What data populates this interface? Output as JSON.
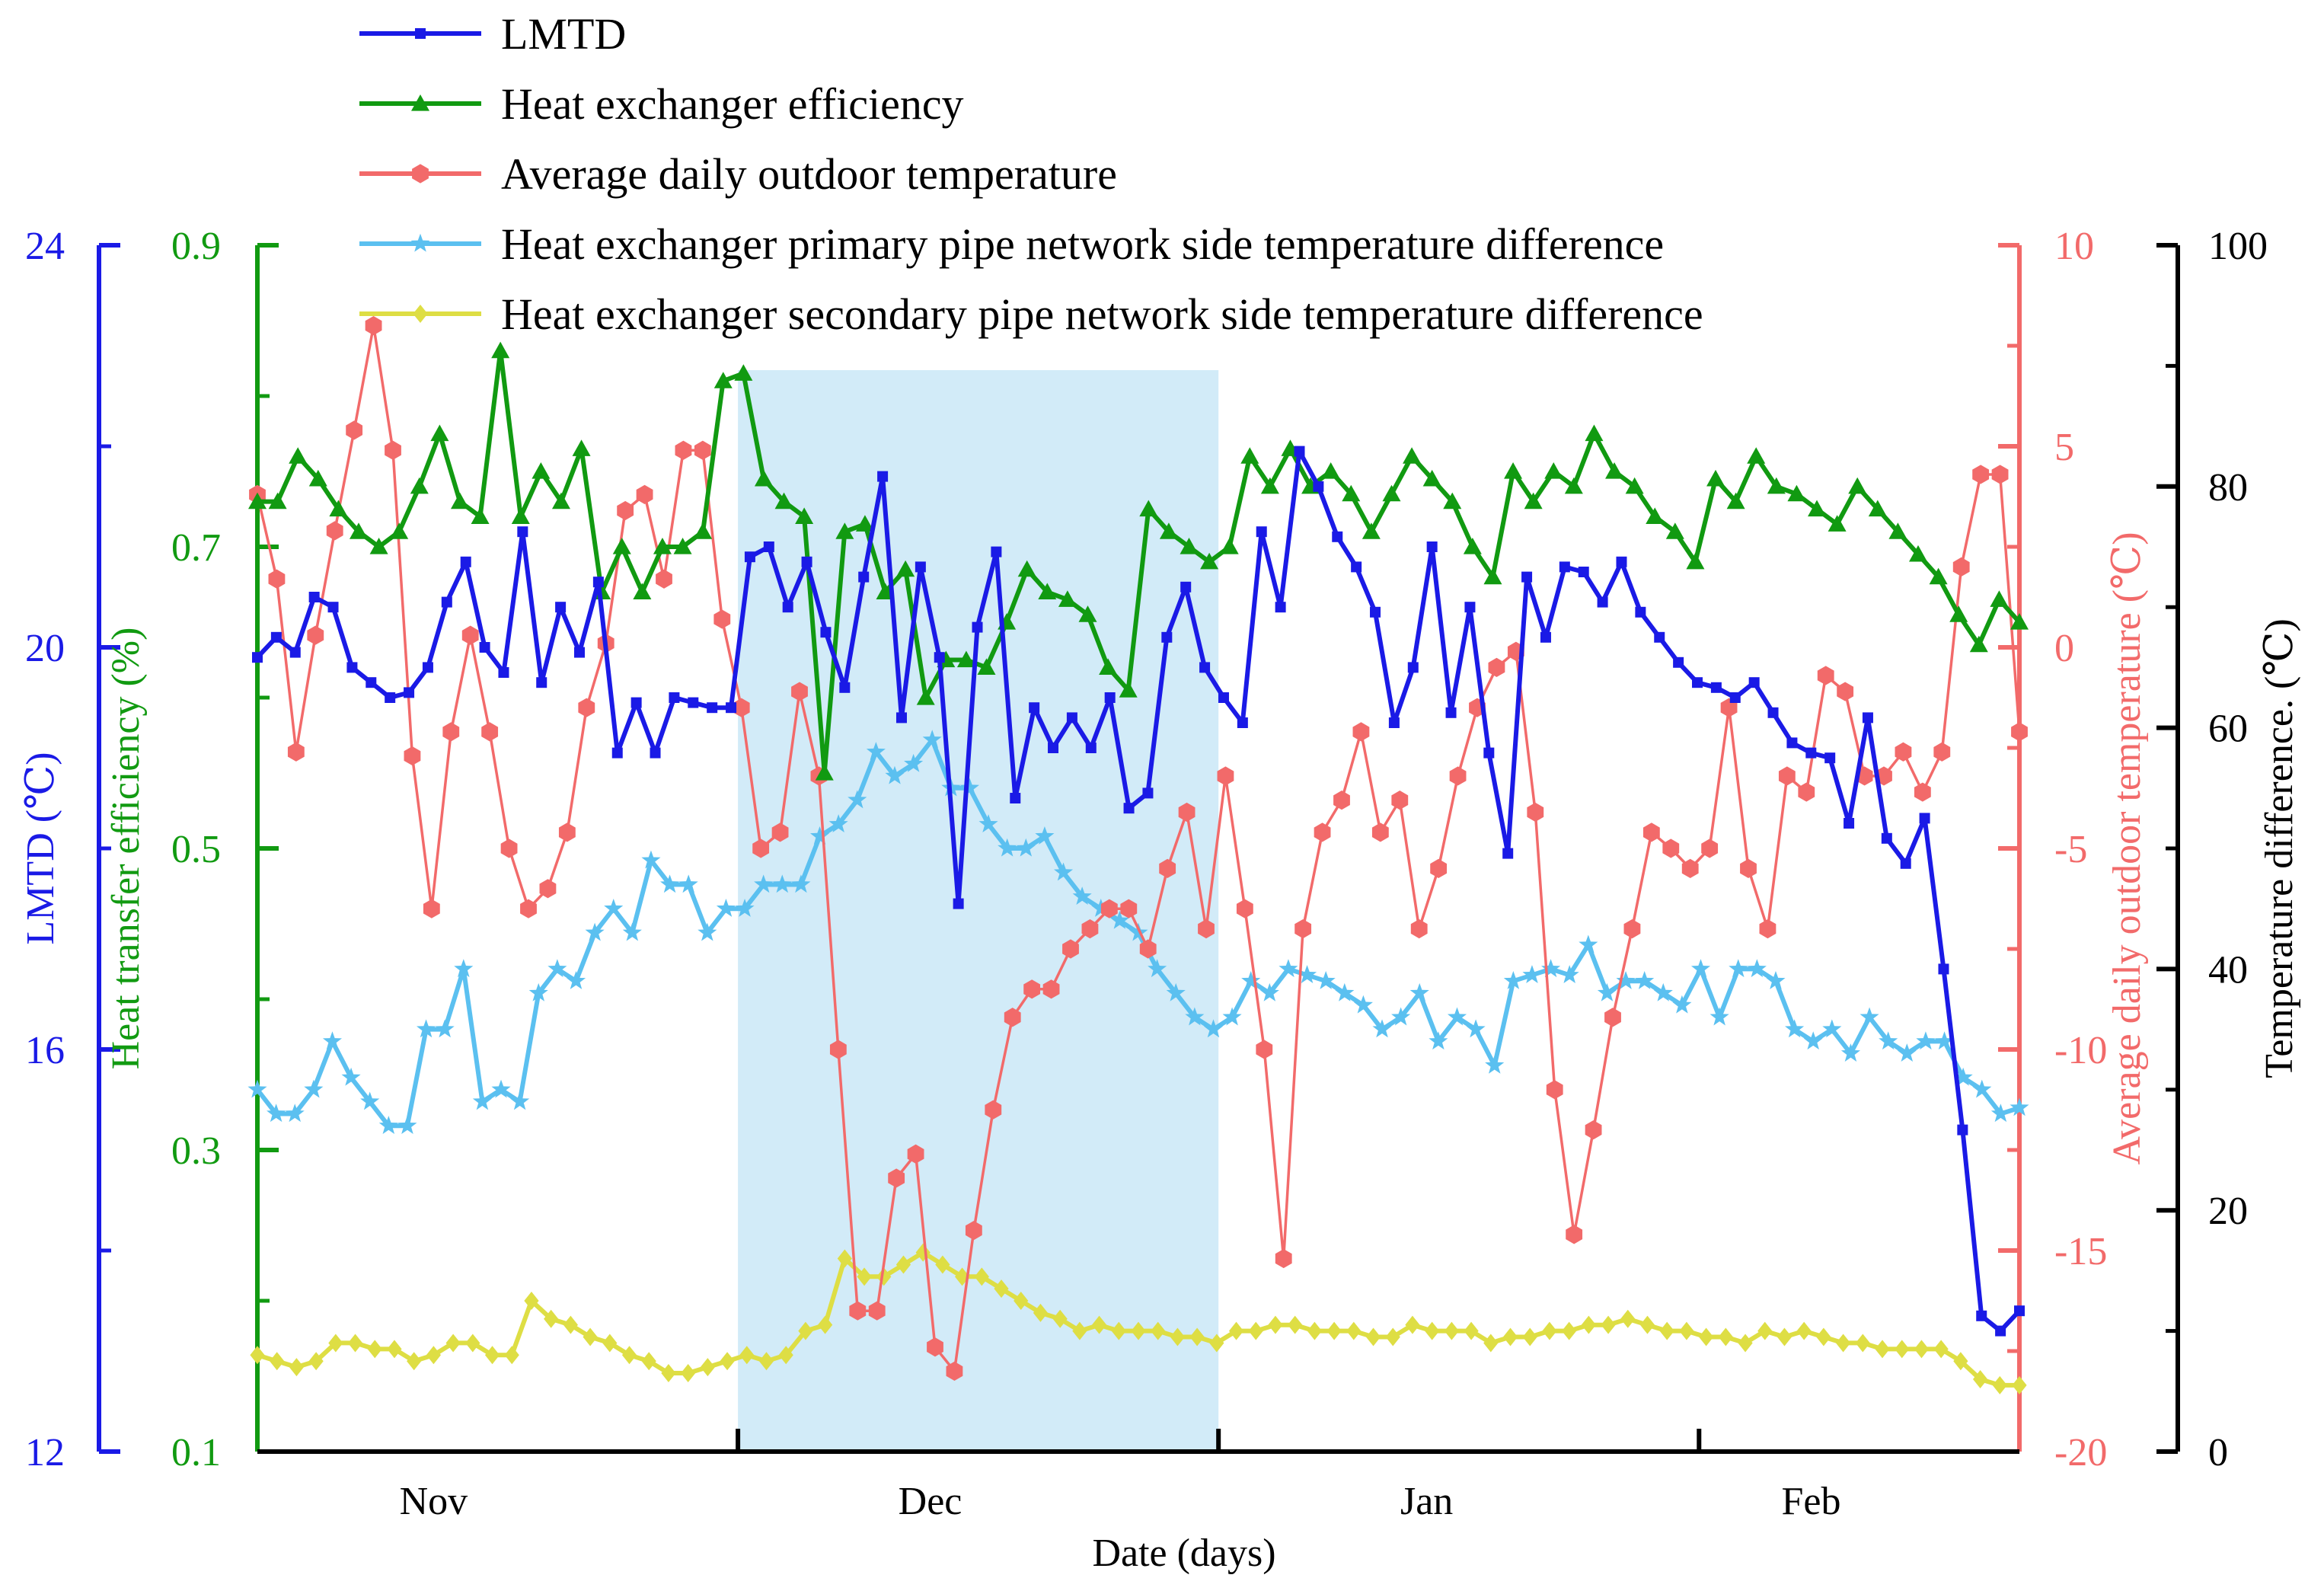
{
  "chart_data": {
    "type": "line",
    "xlabel": "Date (days)",
    "x_tick_labels": [
      "Nov",
      "Dec",
      "Jan",
      "Feb"
    ],
    "x_tick_days": [
      11,
      42,
      73,
      97
    ],
    "day_range": [
      0,
      110
    ],
    "highlight_range_days": [
      30,
      60
    ],
    "axes": [
      {
        "id": "lmtd",
        "label": "LMTD (℃)",
        "ticks": [
          "12",
          "16",
          "20",
          "24"
        ],
        "range": [
          12,
          24
        ],
        "color": "#1a1ae6"
      },
      {
        "id": "eff",
        "label": "Heat transfer efficiency (%)",
        "ticks": [
          "0.1",
          "0.3",
          "0.5",
          "0.7",
          "0.9"
        ],
        "range": [
          0.1,
          0.9
        ],
        "color": "#119a11"
      },
      {
        "id": "temp",
        "label": "Average daily outdoor temperature (℃)",
        "ticks": [
          "-20",
          "-15",
          "-10",
          "-5",
          "0",
          "5",
          "10"
        ],
        "range": [
          -20,
          10
        ],
        "color": "#f26a6a"
      },
      {
        "id": "diff",
        "label": "Temperature difference. (℃)",
        "ticks": [
          "0",
          "20",
          "40",
          "60",
          "80",
          "100"
        ],
        "range": [
          0,
          100
        ],
        "color": "#000000"
      }
    ],
    "series": [
      {
        "name": "LMTD",
        "axis": "lmtd",
        "color": "#1a1ae6",
        "marker": "square",
        "values": [
          19.9,
          20.1,
          19.95,
          20.5,
          20.4,
          19.8,
          19.65,
          19.5,
          19.55,
          19.8,
          20.45,
          20.85,
          20.0,
          19.75,
          21.15,
          19.65,
          20.4,
          19.95,
          20.65,
          18.95,
          19.45,
          18.95,
          19.5,
          19.45,
          19.4,
          19.4,
          20.9,
          21.0,
          20.4,
          20.85,
          20.15,
          19.6,
          20.7,
          21.7,
          19.3,
          20.8,
          19.9,
          17.45,
          20.2,
          20.95,
          18.5,
          19.4,
          19.0,
          19.3,
          19.0,
          19.5,
          18.4,
          18.55,
          20.1,
          20.6,
          19.8,
          19.5,
          19.25,
          21.15,
          20.4,
          21.95,
          21.6,
          21.1,
          20.8,
          20.35,
          19.25,
          19.8,
          21.0,
          19.35,
          20.4,
          18.95,
          17.95,
          20.7,
          20.1,
          20.8,
          20.75,
          20.45,
          20.85,
          20.35,
          20.1,
          19.85,
          19.65,
          19.6,
          19.5,
          19.65,
          19.35,
          19.05,
          18.95,
          18.9,
          18.25,
          19.3,
          18.1,
          17.85,
          18.3,
          16.8,
          15.2,
          13.35,
          13.2,
          13.4
        ]
      },
      {
        "name": "Heat exchanger efficiency",
        "axis": "eff",
        "color": "#119a11",
        "marker": "triangle",
        "values": [
          0.73,
          0.73,
          0.76,
          0.745,
          0.725,
          0.71,
          0.7,
          0.71,
          0.74,
          0.775,
          0.73,
          0.72,
          0.83,
          0.72,
          0.75,
          0.73,
          0.765,
          0.67,
          0.7,
          0.67,
          0.7,
          0.7,
          0.71,
          0.81,
          0.815,
          0.745,
          0.73,
          0.72,
          0.55,
          0.71,
          0.715,
          0.67,
          0.685,
          0.6,
          0.625,
          0.625,
          0.62,
          0.65,
          0.685,
          0.67,
          0.665,
          0.655,
          0.62,
          0.605,
          0.725,
          0.71,
          0.7,
          0.69,
          0.7,
          0.76,
          0.74,
          0.765,
          0.74,
          0.75,
          0.735,
          0.71,
          0.735,
          0.76,
          0.745,
          0.73,
          0.7,
          0.68,
          0.75,
          0.73,
          0.75,
          0.74,
          0.775,
          0.75,
          0.74,
          0.72,
          0.71,
          0.69,
          0.745,
          0.73,
          0.76,
          0.74,
          0.735,
          0.725,
          0.715,
          0.74,
          0.725,
          0.71,
          0.695,
          0.68,
          0.655,
          0.635,
          0.665,
          0.65
        ]
      },
      {
        "name": "Average daily outdoor temperature",
        "axis": "temp",
        "color": "#f26a6a",
        "marker": "hexagon",
        "values": [
          3.8,
          1.7,
          -2.6,
          0.3,
          2.9,
          5.4,
          8.0,
          4.9,
          -2.7,
          -6.5,
          -2.1,
          0.3,
          -2.1,
          -5.0,
          -6.5,
          -6.0,
          -4.6,
          -1.5,
          0.1,
          3.4,
          3.8,
          1.7,
          4.9,
          4.9,
          0.7,
          -1.5,
          -5.0,
          -4.6,
          -1.1,
          -3.2,
          -10.0,
          -16.5,
          -16.5,
          -13.2,
          -12.6,
          -17.4,
          -18.0,
          -14.5,
          -11.5,
          -9.2,
          -8.5,
          -8.5,
          -7.5,
          -7.0,
          -6.5,
          -6.5,
          -7.5,
          -5.5,
          -4.1,
          -7.0,
          -3.2,
          -6.5,
          -10.0,
          -15.2,
          -7.0,
          -4.6,
          -3.8,
          -2.1,
          -4.6,
          -3.8,
          -7.0,
          -5.5,
          -3.2,
          -1.5,
          -0.5,
          -0.1,
          -4.1,
          -11.0,
          -14.6,
          -12.0,
          -9.2,
          -7.0,
          -4.6,
          -5.0,
          -5.5,
          -5.0,
          -1.5,
          -5.5,
          -7.0,
          -3.2,
          -3.6,
          -0.7,
          -1.1,
          -3.2,
          -3.2,
          -2.6,
          -3.6,
          -2.6,
          2.0,
          4.3,
          4.3,
          -2.1
        ]
      },
      {
        "name": "Heat exchanger primary pipe network side temperature difference",
        "axis": "diff",
        "color": "#5bc0f0",
        "marker": "star",
        "values": [
          30,
          28,
          28,
          30,
          34,
          31,
          29,
          27,
          27,
          35,
          35,
          40,
          29,
          30,
          29,
          38,
          40,
          39,
          43,
          45,
          43,
          49,
          47,
          47,
          43,
          45,
          45,
          47,
          47,
          47,
          51,
          52,
          54,
          58,
          56,
          57,
          59,
          55,
          55,
          52,
          50,
          50,
          51,
          48,
          46,
          45,
          44,
          43,
          40,
          38,
          36,
          35,
          36,
          39,
          38,
          40,
          39.5,
          39,
          38,
          37,
          35,
          36,
          38,
          34,
          36,
          35,
          32,
          39,
          39.5,
          40,
          39.5,
          42,
          38,
          39,
          39,
          38,
          37,
          40,
          36,
          40,
          40,
          39,
          35,
          34,
          35,
          33,
          36,
          34,
          33,
          34,
          34,
          31,
          30,
          28,
          28.5
        ]
      },
      {
        "name": "Heat exchanger secondary pipe network side temperature difference",
        "axis": "diff",
        "color": "#dede44",
        "marker": "diamond",
        "values": [
          8,
          7.5,
          7,
          7.5,
          9,
          9,
          8.5,
          8.5,
          7.5,
          8,
          9,
          9,
          8,
          8,
          12.5,
          11,
          10.5,
          9.5,
          9,
          8,
          7.5,
          6.5,
          6.5,
          7,
          7.5,
          8,
          7.5,
          8,
          10,
          10.5,
          16,
          14.5,
          14.5,
          15.5,
          16.5,
          15.5,
          14.5,
          14.5,
          13.5,
          12.5,
          11.5,
          11,
          10,
          10.5,
          10,
          10,
          10,
          9.5,
          9.5,
          9,
          10,
          10,
          10.5,
          10.5,
          10,
          10,
          10,
          9.5,
          9.5,
          10.5,
          10,
          10,
          10,
          9,
          9.5,
          9.5,
          10,
          10,
          10.5,
          10.5,
          11,
          10.5,
          10,
          10,
          9.5,
          9.5,
          9,
          10,
          9.5,
          10,
          9.5,
          9,
          9,
          8.5,
          8.5,
          8.5,
          8.5,
          7.5,
          6,
          5.5,
          5.5
        ]
      }
    ]
  }
}
